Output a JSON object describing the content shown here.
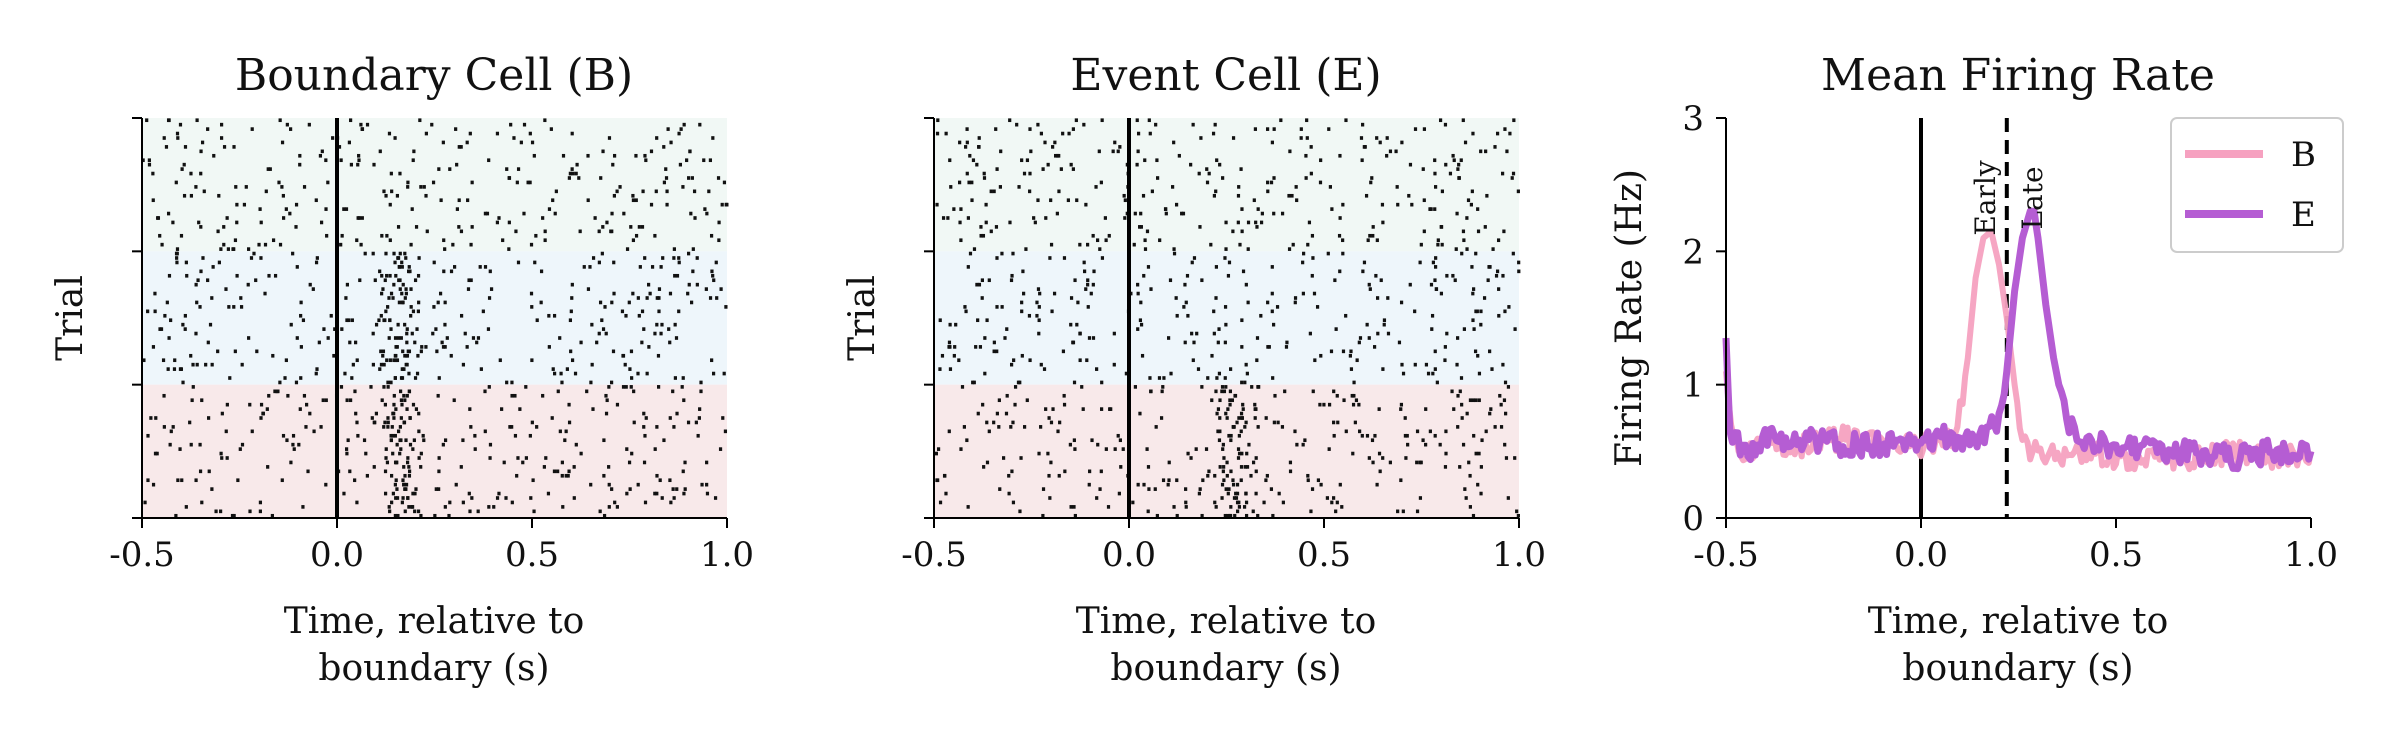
{
  "chart_data": [
    {
      "type": "raster",
      "title": "Boundary Cell (B)",
      "xlabel": [
        "Time, relative to",
        "boundary (s)"
      ],
      "ylabel": "Trial",
      "xlim": [
        -0.5,
        1.0
      ],
      "xticks": [
        -0.5,
        0.0,
        0.5,
        1.0
      ],
      "xtick_labels": [
        "-0.5",
        "0.0",
        "0.5",
        "1.0"
      ],
      "n_trials": 90,
      "boundary_time": 0.0,
      "trial_groups": [
        {
          "trials": [
            1,
            30
          ],
          "color": "#f1f8f5"
        },
        {
          "trials": [
            31,
            60
          ],
          "color": "#eef6fb"
        },
        {
          "trials": [
            61,
            90
          ],
          "color": "#f8e9ea"
        }
      ],
      "background_rate_hz": 0.6,
      "response": {
        "trials": [
          31,
          90
        ],
        "peak_time": 0.16,
        "width_s": 0.025
      }
    },
    {
      "type": "raster",
      "title": "Event Cell (E)",
      "xlabel": [
        "Time, relative to",
        "boundary (s)"
      ],
      "ylabel": "Trial",
      "xlim": [
        -0.5,
        1.0
      ],
      "xticks": [
        -0.5,
        0.0,
        0.5,
        1.0
      ],
      "xtick_labels": [
        "-0.5",
        "0.0",
        "0.5",
        "1.0"
      ],
      "n_trials": 90,
      "boundary_time": 0.0,
      "trial_groups": [
        {
          "trials": [
            1,
            30
          ],
          "color": "#f1f8f5"
        },
        {
          "trials": [
            31,
            60
          ],
          "color": "#eef6fb"
        },
        {
          "trials": [
            61,
            90
          ],
          "color": "#f8e9ea"
        }
      ],
      "background_rate_hz": 0.65,
      "response": {
        "trials": [
          61,
          90
        ],
        "peak_time": 0.27,
        "width_s": 0.03
      }
    },
    {
      "type": "line",
      "title": "Mean Firing Rate",
      "xlabel": [
        "Time, relative to",
        "boundary (s)"
      ],
      "ylabel": "Firing Rate (Hz)",
      "xlim": [
        -0.5,
        1.0
      ],
      "ylim": [
        0,
        3
      ],
      "xticks": [
        -0.5,
        0.0,
        0.5,
        1.0
      ],
      "xtick_labels": [
        "-0.5",
        "0.0",
        "0.5",
        "1.0"
      ],
      "yticks": [
        0,
        1,
        2,
        3
      ],
      "ytick_labels": [
        "0",
        "1",
        "2",
        "3"
      ],
      "vlines": [
        {
          "x": 0.0,
          "style": "solid"
        },
        {
          "x": 0.22,
          "style": "dashed"
        }
      ],
      "annotations": [
        {
          "text": "Early",
          "x": 0.19,
          "y": 2.4
        },
        {
          "text": "Late",
          "x": 0.31,
          "y": 2.4
        }
      ],
      "legend_position": "top-right",
      "series": [
        {
          "name": "B",
          "color": "#f6a1c0",
          "x": [
            -0.5,
            -0.48,
            -0.45,
            -0.4,
            -0.3,
            -0.2,
            -0.1,
            0.0,
            0.05,
            0.08,
            0.1,
            0.12,
            0.14,
            0.16,
            0.18,
            0.2,
            0.22,
            0.24,
            0.26,
            0.28,
            0.3,
            0.35,
            0.4,
            0.5,
            0.6,
            0.7,
            0.8,
            0.9,
            1.0
          ],
          "y": [
            1.1,
            0.55,
            0.5,
            0.55,
            0.55,
            0.6,
            0.55,
            0.55,
            0.55,
            0.6,
            0.8,
            1.2,
            1.8,
            2.1,
            2.15,
            1.9,
            1.5,
            1.0,
            0.6,
            0.5,
            0.5,
            0.45,
            0.5,
            0.45,
            0.45,
            0.45,
            0.5,
            0.45,
            0.5
          ]
        },
        {
          "name": "E",
          "color": "#b55dd3",
          "x": [
            -0.5,
            -0.49,
            -0.47,
            -0.45,
            -0.4,
            -0.3,
            -0.2,
            -0.1,
            0.0,
            0.1,
            0.15,
            0.2,
            0.22,
            0.24,
            0.26,
            0.28,
            0.29,
            0.3,
            0.32,
            0.34,
            0.36,
            0.38,
            0.4,
            0.45,
            0.5,
            0.6,
            0.7,
            0.8,
            0.9,
            1.0
          ],
          "y": [
            1.35,
            0.6,
            0.55,
            0.5,
            0.6,
            0.6,
            0.55,
            0.55,
            0.6,
            0.6,
            0.6,
            0.75,
            1.1,
            1.7,
            2.1,
            2.3,
            2.3,
            2.1,
            1.6,
            1.2,
            0.9,
            0.7,
            0.6,
            0.55,
            0.55,
            0.5,
            0.5,
            0.45,
            0.5,
            0.5
          ]
        }
      ]
    }
  ]
}
